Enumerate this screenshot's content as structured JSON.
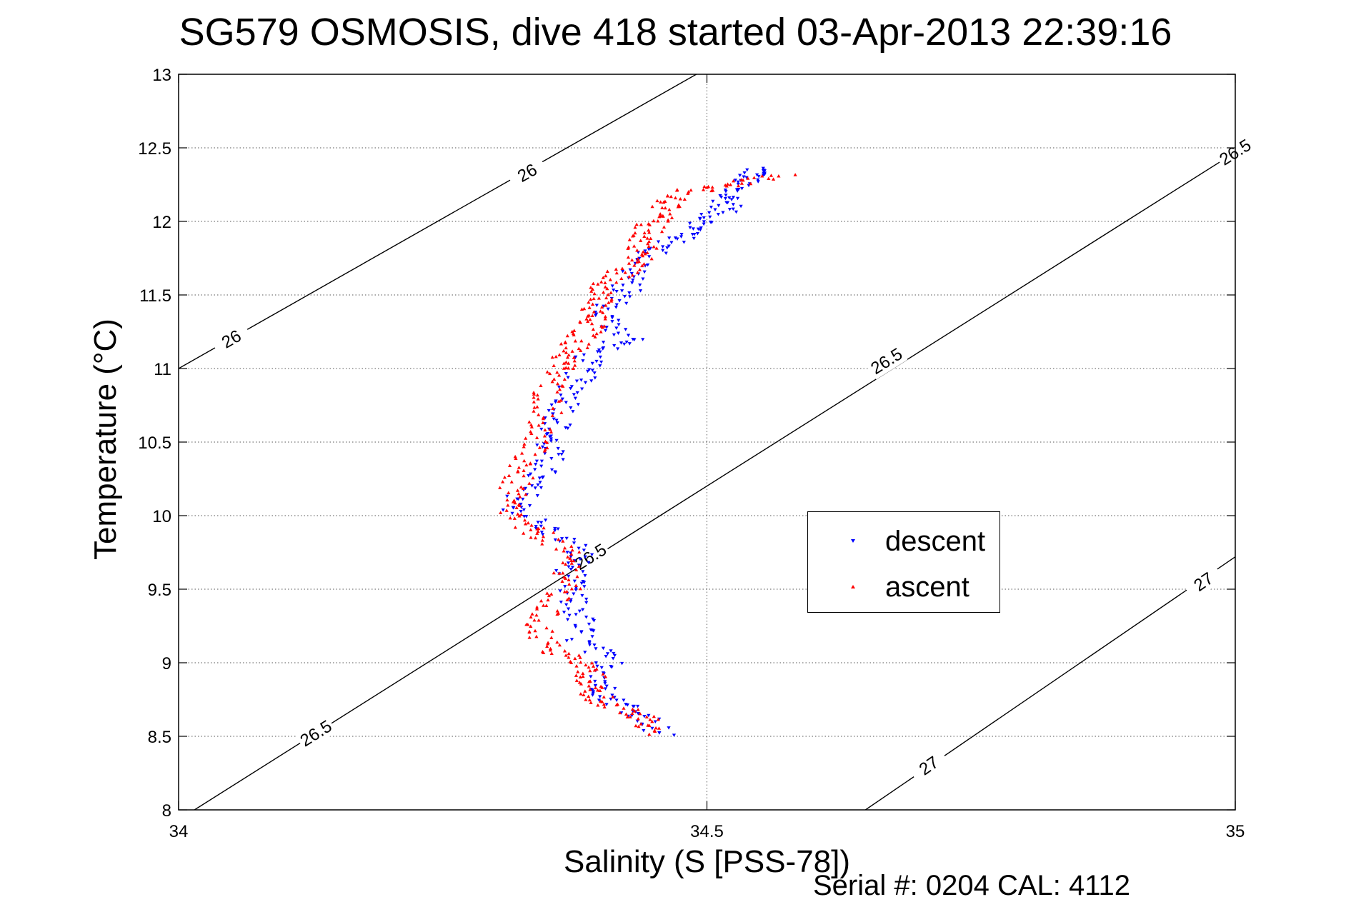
{
  "chart_data": {
    "type": "scatter",
    "title": "SG579 OSMOSIS, dive 418 started 03-Apr-2013 22:39:16",
    "xlabel": "Salinity (S [PSS-78])",
    "ylabel": "Temperature (°C)",
    "xlim": [
      34,
      35
    ],
    "ylim": [
      8,
      13
    ],
    "xticks": [
      {
        "value": 34,
        "label": "34"
      },
      {
        "value": 34.5,
        "label": "34.5"
      },
      {
        "value": 35,
        "label": "35"
      }
    ],
    "yticks": [
      {
        "value": 8,
        "label": "8"
      },
      {
        "value": 8.5,
        "label": "8.5"
      },
      {
        "value": 9,
        "label": "9"
      },
      {
        "value": 9.5,
        "label": "9.5"
      },
      {
        "value": 10,
        "label": "10"
      },
      {
        "value": 10.5,
        "label": "10.5"
      },
      {
        "value": 11,
        "label": "11"
      },
      {
        "value": 11.5,
        "label": "11.5"
      },
      {
        "value": 12,
        "label": "12"
      },
      {
        "value": 12.5,
        "label": "12.5"
      },
      {
        "value": 13,
        "label": "13"
      }
    ],
    "grid": true,
    "legend_position": "center-right",
    "density_contours": [
      {
        "label": "26",
        "points": [
          [
            34.0,
            11.0
          ],
          [
            34.49,
            13.0
          ]
        ],
        "labels_at": [
          [
            34.05,
            11.2
          ],
          [
            34.33,
            12.33
          ]
        ]
      },
      {
        "label": "26.5",
        "points": [
          [
            34.015,
            8.0
          ],
          [
            35.0,
            12.47
          ]
        ],
        "labels_at": [
          [
            34.13,
            8.52
          ],
          [
            34.39,
            9.72
          ],
          [
            34.67,
            11.05
          ],
          [
            35.0,
            12.47
          ]
        ]
      },
      {
        "label": "27",
        "points": [
          [
            34.65,
            8.0
          ],
          [
            35.0,
            9.72
          ]
        ],
        "labels_at": [
          [
            34.71,
            8.3
          ],
          [
            34.97,
            9.55
          ]
        ]
      }
    ],
    "series": [
      {
        "name": "descent",
        "color": "#0000ff",
        "marker": "triangle-down",
        "path": [
          [
            34.55,
            12.35
          ],
          [
            34.54,
            12.3
          ],
          [
            34.52,
            12.2
          ],
          [
            34.52,
            12.1
          ],
          [
            34.5,
            12.0
          ],
          [
            34.48,
            11.9
          ],
          [
            34.45,
            11.8
          ],
          [
            34.43,
            11.65
          ],
          [
            34.42,
            11.5
          ],
          [
            34.4,
            11.35
          ],
          [
            34.43,
            11.2
          ],
          [
            34.39,
            11.1
          ],
          [
            34.38,
            10.95
          ],
          [
            34.37,
            10.8
          ],
          [
            34.36,
            10.65
          ],
          [
            34.35,
            10.5
          ],
          [
            34.35,
            10.35
          ],
          [
            34.33,
            10.2
          ],
          [
            34.32,
            10.05
          ],
          [
            34.35,
            9.9
          ],
          [
            34.38,
            9.75
          ],
          [
            34.37,
            9.6
          ],
          [
            34.37,
            9.45
          ],
          [
            34.38,
            9.3
          ],
          [
            34.38,
            9.15
          ],
          [
            34.41,
            9.0
          ],
          [
            34.4,
            8.85
          ],
          [
            34.41,
            8.75
          ],
          [
            34.44,
            8.65
          ],
          [
            34.46,
            8.5
          ]
        ]
      },
      {
        "name": "ascent",
        "color": "#ff0000",
        "marker": "triangle-up",
        "path": [
          [
            34.57,
            12.32
          ],
          [
            34.52,
            12.25
          ],
          [
            34.48,
            12.2
          ],
          [
            34.46,
            12.1
          ],
          [
            34.45,
            12.0
          ],
          [
            34.44,
            11.9
          ],
          [
            34.44,
            11.8
          ],
          [
            34.43,
            11.7
          ],
          [
            34.41,
            11.6
          ],
          [
            34.4,
            11.5
          ],
          [
            34.39,
            11.4
          ],
          [
            34.39,
            11.3
          ],
          [
            34.38,
            11.2
          ],
          [
            34.37,
            11.1
          ],
          [
            34.36,
            11.0
          ],
          [
            34.35,
            10.85
          ],
          [
            34.35,
            10.7
          ],
          [
            34.34,
            10.55
          ],
          [
            34.33,
            10.4
          ],
          [
            34.32,
            10.25
          ],
          [
            34.31,
            10.1
          ],
          [
            34.32,
            9.95
          ],
          [
            34.35,
            9.85
          ],
          [
            34.37,
            9.7
          ],
          [
            34.37,
            9.55
          ],
          [
            34.35,
            9.4
          ],
          [
            34.34,
            9.25
          ],
          [
            34.35,
            9.1
          ],
          [
            34.38,
            9.0
          ],
          [
            34.39,
            8.9
          ],
          [
            34.39,
            8.8
          ],
          [
            34.41,
            8.7
          ],
          [
            34.44,
            8.62
          ],
          [
            34.45,
            8.52
          ]
        ]
      }
    ]
  },
  "footer": {
    "serial": "Serial #: 0204  CAL: 4112"
  }
}
